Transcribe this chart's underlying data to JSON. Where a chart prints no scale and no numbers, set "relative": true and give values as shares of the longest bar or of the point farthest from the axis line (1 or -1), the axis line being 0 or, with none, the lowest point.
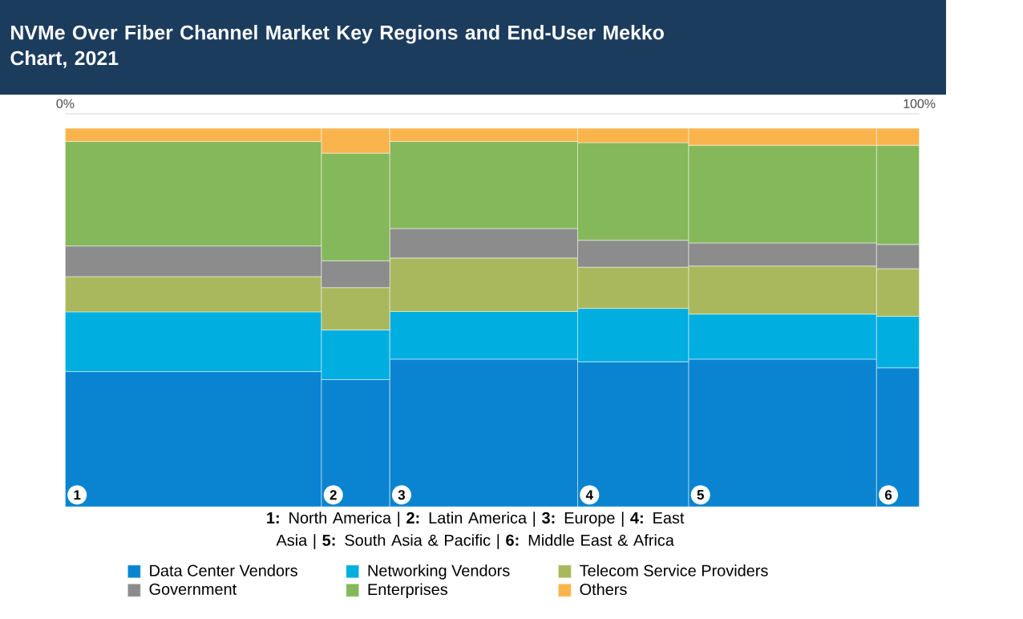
{
  "chart_data": {
    "type": "bar",
    "stacked": true,
    "relative": true,
    "title": "NVMe Over Fiber Channel Market Key Regions and End-User Mekko Chart, 2021",
    "x": [
      15,
      34,
      49,
      66.5,
      84,
      97.5
    ],
    "xlim": [
      0,
      100
    ],
    "xticks": [
      {
        "value": 0,
        "label": "0%"
      },
      {
        "value": 100,
        "label": "100%"
      }
    ],
    "series": [
      {
        "name": "Data Center Vendors",
        "color": "#0a84d0",
        "values": [
          0.357,
          0.336,
          0.39,
          0.383,
          0.39,
          0.367
        ]
      },
      {
        "name": "Networking Vendors",
        "color": "#00aee0",
        "values": [
          0.158,
          0.131,
          0.126,
          0.141,
          0.119,
          0.136
        ]
      },
      {
        "name": "Telecom Service Providers",
        "color": "#a9b85c",
        "values": [
          0.093,
          0.112,
          0.141,
          0.109,
          0.127,
          0.126
        ]
      },
      {
        "name": "Government",
        "color": "#8c8c8c",
        "values": [
          0.081,
          0.071,
          0.078,
          0.071,
          0.061,
          0.064
        ]
      },
      {
        "name": "Enterprises",
        "color": "#84b85a",
        "values": [
          0.276,
          0.284,
          0.23,
          0.258,
          0.258,
          0.262
        ]
      },
      {
        "name": "Others",
        "color": "#f9b54c",
        "values": [
          0.035,
          0.066,
          0.035,
          0.038,
          0.045,
          0.045
        ]
      }
    ],
    "annotations": [
      {
        "text": "1",
        "x": 0,
        "y": 0
      },
      {
        "text": "2",
        "x": 30,
        "y": 0
      },
      {
        "text": "3",
        "x": 38,
        "y": 0
      },
      {
        "text": "4",
        "x": 60,
        "y": 0
      },
      {
        "text": "5",
        "x": 73,
        "y": 0
      },
      {
        "text": "6",
        "x": 95,
        "y": 0
      },
      "**1:** North America  |  **2:** Latin America  |  **3:** Europe  |  **4:** East Asia  |  **5:** South Asia & Pacific  |  **6:** Middle East & Africa"
    ],
    "legend": "bottom"
  }
}
